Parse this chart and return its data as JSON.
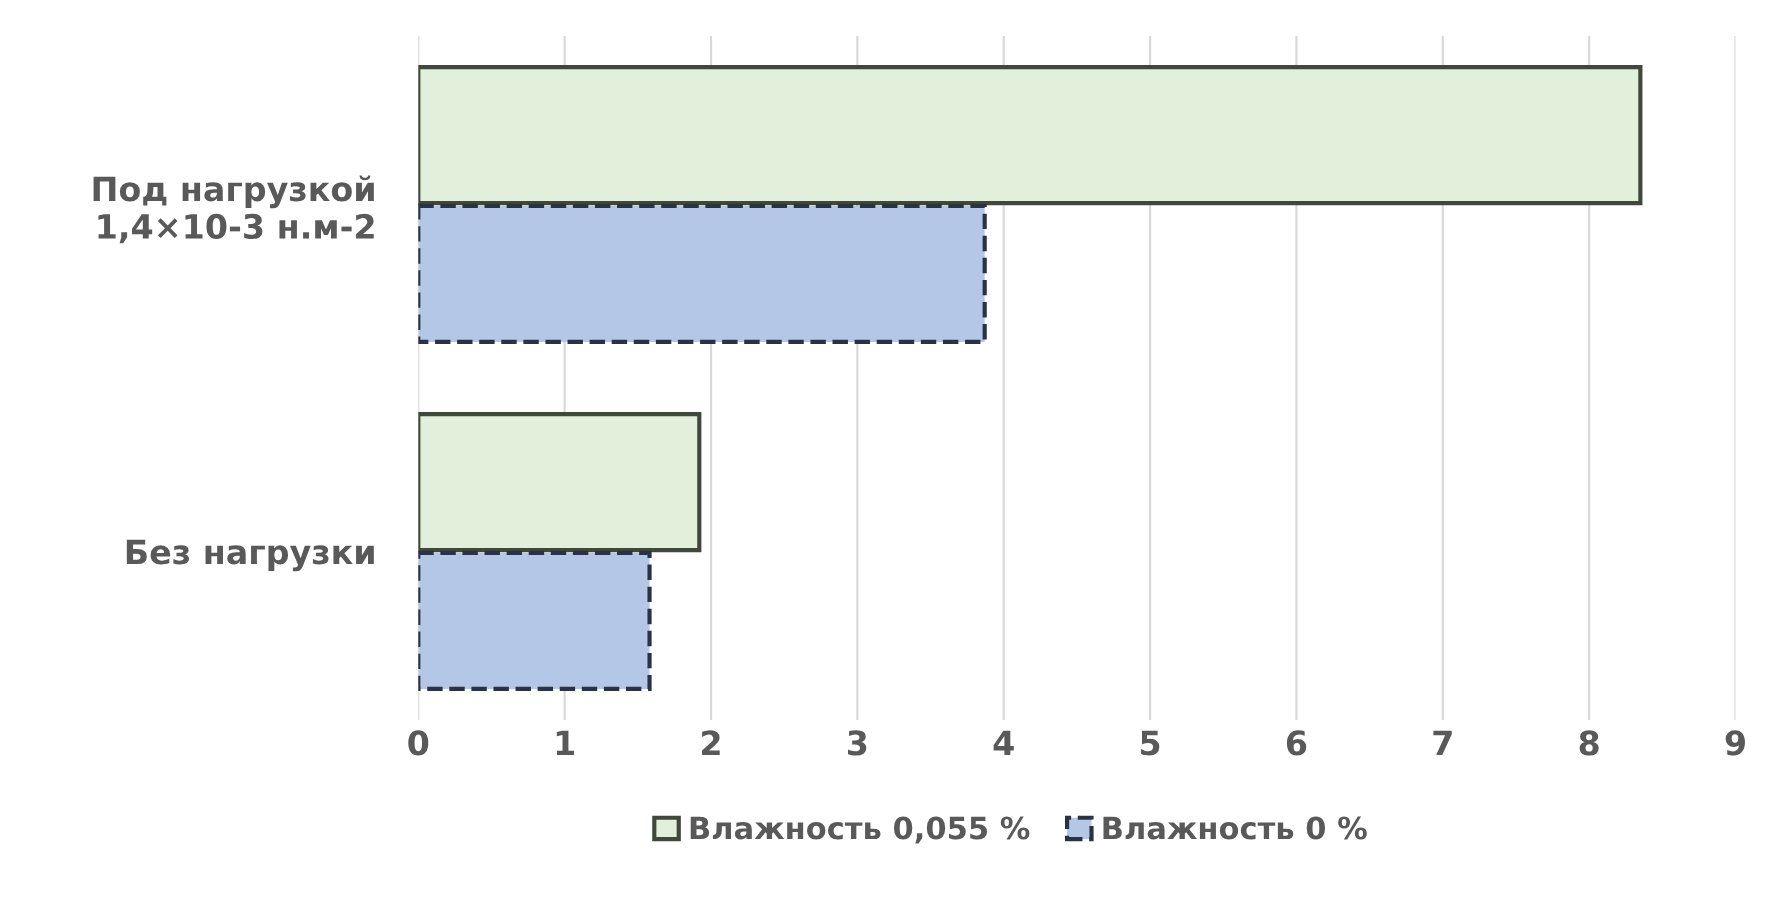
{
  "chart_data": {
    "type": "bar",
    "orientation": "horizontal",
    "categories": [
      "Под нагрузкой\n1,4×10-3 н.м-2",
      "Без нагрузки"
    ],
    "series": [
      {
        "name": "Влажность 0,055 %",
        "color": "#e2efda",
        "line_style": "solid",
        "values": [
          8.35,
          1.92
        ]
      },
      {
        "name": "Влажность 0 %",
        "color": "#b4c7e7",
        "line_style": "dashed",
        "values": [
          3.87,
          1.58
        ]
      }
    ],
    "xlim": [
      0,
      9
    ],
    "xticks": [
      0,
      1,
      2,
      3,
      4,
      5,
      6,
      7,
      8,
      9
    ],
    "grid": "x",
    "legend": "bottom"
  }
}
